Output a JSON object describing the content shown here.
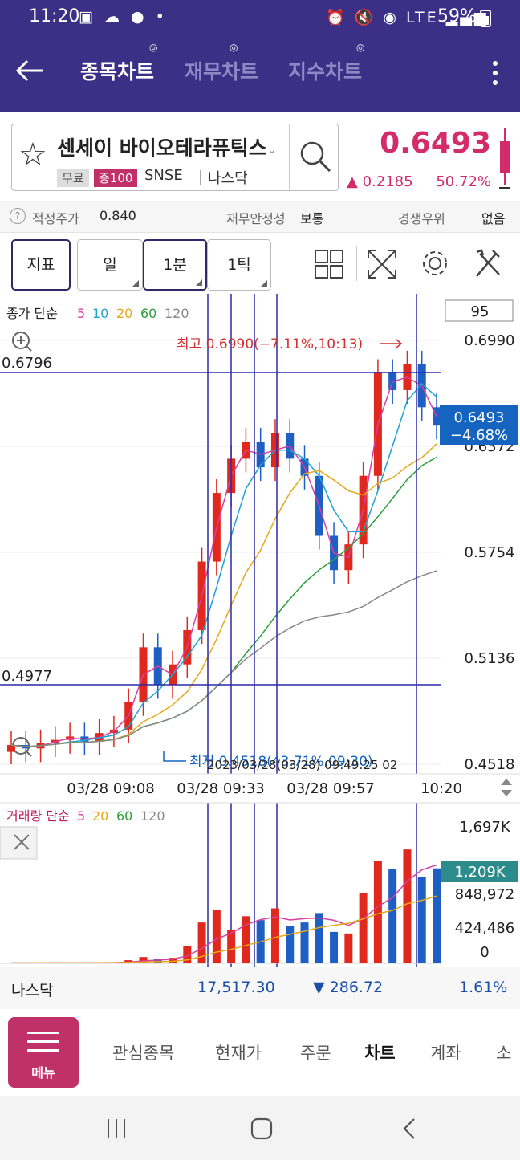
{
  "status_bar": {
    "time": "11:20",
    "left_icons": "▣ ☁ ● •",
    "right_icons": "⏰ 🔇 ◉ LTE ▂▄▆",
    "battery": "59%"
  },
  "header": {
    "back_icon": "arrow-left-icon",
    "tabs": [
      {
        "label": "종목차트",
        "active": true
      },
      {
        "label": "재무차트",
        "active": false
      },
      {
        "label": "지수차트",
        "active": false
      }
    ]
  },
  "stock": {
    "name": "센세이 바이오테라퓨틱스",
    "badge_free": "무료",
    "badge_margin": "증100",
    "ticker": "SNSE",
    "market": "나스닥",
    "price": "0.6493",
    "change": "0.2185",
    "change_pct": "50.72%",
    "accent_color": "#d42b6a"
  },
  "info_row": {
    "fair_label": "적정주가",
    "fair_value": "0.840",
    "stability_label": "재무안정성",
    "stability_value": "보통",
    "rank_label": "경쟁우위",
    "rank_value": "없음"
  },
  "toolbar": {
    "indicator": "지표",
    "periods": [
      "일",
      "1분",
      "1틱"
    ],
    "selected_period": "1분"
  },
  "chart": {
    "legend_prefix": "종가 단순",
    "ma_periods": [
      "5",
      "10",
      "20",
      "60",
      "120"
    ],
    "ma_colors": [
      "#d63fa0",
      "#1fa3d0",
      "#e6a817",
      "#2b9e3a",
      "#888888"
    ],
    "count_box": "95",
    "high_annotation": "최고 0.6990(−7.11%,10:13)",
    "low_annotation": "최저 0.4518(43.71%,09:30)",
    "hline_top_label": "0.6796",
    "hline_bottom_label": "0.4977",
    "current_price": "0.6493",
    "current_pct": "−4.68%",
    "price_axis": [
      "0.6990",
      "0.6372",
      "0.5754",
      "0.5136",
      "0.4518"
    ],
    "time_axis": [
      "03/28 09:08",
      "03/28 09:33",
      "03/28 09:57",
      "10:20"
    ],
    "overlap_time_text": "2023/03/28(03/28) 09:49:25 02"
  },
  "chart_data": {
    "type": "candlestick",
    "title": "",
    "ylim": [
      0.4518,
      0.699
    ],
    "x_labels": [
      "03/28 09:08",
      "03/28 09:33",
      "03/28 09:57",
      "10:20"
    ],
    "close_approx": [
      0.463,
      0.461,
      0.464,
      0.466,
      0.468,
      0.465,
      0.47,
      0.472,
      0.488,
      0.52,
      0.498,
      0.51,
      0.53,
      0.57,
      0.61,
      0.63,
      0.64,
      0.625,
      0.645,
      0.63,
      0.62,
      0.585,
      0.565,
      0.58,
      0.62,
      0.68,
      0.67,
      0.685,
      0.66,
      0.6493
    ],
    "high": 0.699,
    "low": 0.4518,
    "last": 0.6493
  },
  "volume": {
    "legend_prefix": "거래량 단순",
    "ma_periods": [
      "5",
      "20",
      "60",
      "120"
    ],
    "axis": [
      "1,697K",
      "848,972",
      "424,486",
      "0"
    ],
    "current": "1,209K",
    "values_k": [
      5,
      6,
      4,
      8,
      6,
      5,
      12,
      15,
      40,
      80,
      60,
      70,
      220,
      520,
      680,
      430,
      600,
      550,
      700,
      480,
      520,
      640,
      400,
      380,
      900,
      1300,
      1200,
      1450,
      1100,
      1209
    ]
  },
  "ticker_bar": {
    "name": "나스닥",
    "value": "17,517.30",
    "change": "286.72",
    "pct": "1.61%"
  },
  "bottom_nav": {
    "menu_label": "메뉴",
    "items": [
      "관심종목",
      "현재가",
      "주문",
      "차트",
      "계좌",
      "소"
    ],
    "active": "차트"
  }
}
